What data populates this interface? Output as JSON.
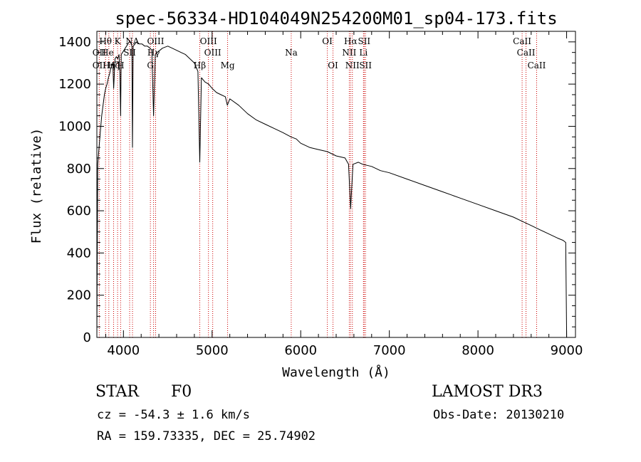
{
  "chart_data": {
    "type": "line",
    "title": "spec-56334-HD104049N254200M01_sp04-173.fits",
    "xlabel": "Wavelength (Å)",
    "ylabel": "Flux (relative)",
    "xlim": [
      3700,
      9100
    ],
    "ylim": [
      0,
      1450
    ],
    "xticks": [
      4000,
      5000,
      6000,
      7000,
      8000,
      9000
    ],
    "yticks": [
      0,
      200,
      400,
      600,
      800,
      1000,
      1200,
      1400
    ],
    "x_tick_labels": [
      "4000",
      "5000",
      "6000",
      "7000",
      "8000",
      "9000"
    ],
    "y_tick_labels": [
      "0",
      "200",
      "400",
      "600",
      "800",
      "1000",
      "1200",
      "1400"
    ],
    "series": [
      {
        "name": "spectrum",
        "color": "#000000",
        "x": [
          3700,
          3710,
          3725,
          3740,
          3755,
          3770,
          3785,
          3800,
          3815,
          3830,
          3845,
          3860,
          3870,
          3880,
          3890,
          3905,
          3920,
          3935,
          3950,
          3960,
          3968,
          3975,
          3990,
          4005,
          4020,
          4035,
          4050,
          4065,
          4080,
          4095,
          4102,
          4110,
          4130,
          4150,
          4180,
          4210,
          4240,
          4270,
          4300,
          4320,
          4340,
          4360,
          4380,
          4410,
          4440,
          4470,
          4500,
          4550,
          4600,
          4650,
          4700,
          4750,
          4800,
          4840,
          4861,
          4880,
          4920,
          4960,
          5000,
          5050,
          5100,
          5150,
          5172,
          5200,
          5300,
          5400,
          5500,
          5600,
          5700,
          5800,
          5890,
          5950,
          6000,
          6100,
          6200,
          6300,
          6400,
          6500,
          6540,
          6563,
          6590,
          6650,
          6700,
          6800,
          6900,
          7000,
          7200,
          7400,
          7600,
          7800,
          8000,
          8200,
          8400,
          8500,
          8600,
          8700,
          8800,
          8900,
          8960,
          8990,
          9000
        ],
        "y": [
          0,
          820,
          900,
          980,
          1050,
          1100,
          1150,
          1180,
          1200,
          1230,
          1250,
          1280,
          1290,
          1300,
          1180,
          1320,
          1330,
          1320,
          1340,
          1250,
          1050,
          1340,
          1350,
          1360,
          1370,
          1380,
          1390,
          1400,
          1400,
          1380,
          900,
          1380,
          1390,
          1400,
          1390,
          1390,
          1380,
          1380,
          1370,
          1360,
          1050,
          1340,
          1350,
          1360,
          1370,
          1375,
          1380,
          1370,
          1360,
          1350,
          1340,
          1320,
          1300,
          1260,
          830,
          1230,
          1210,
          1200,
          1180,
          1160,
          1150,
          1140,
          1100,
          1130,
          1100,
          1060,
          1030,
          1010,
          990,
          970,
          950,
          940,
          920,
          900,
          890,
          880,
          860,
          850,
          820,
          610,
          820,
          830,
          820,
          810,
          790,
          780,
          750,
          720,
          690,
          660,
          630,
          600,
          570,
          550,
          530,
          510,
          490,
          470,
          460,
          450,
          0
        ]
      }
    ],
    "line_markers": [
      {
        "label": "Hθ",
        "x": 3798,
        "row": 1
      },
      {
        "label": "OII",
        "x": 3727,
        "row": 2
      },
      {
        "label": "OII",
        "x": 3727,
        "row": 3
      },
      {
        "label": "He",
        "x": 3820,
        "row": 2
      },
      {
        "label": "Hη",
        "x": 3835,
        "row": 3
      },
      {
        "label": "Hζ",
        "x": 3889,
        "row": 3
      },
      {
        "label": "K",
        "x": 3934,
        "row": 1
      },
      {
        "label": "H",
        "x": 3968,
        "row": 3
      },
      {
        "label": "SII",
        "x": 4070,
        "row": 2
      },
      {
        "label": "NA",
        "x": 4100,
        "row": 1
      },
      {
        "label": "OIII",
        "x": 4363,
        "row": 1
      },
      {
        "label": "Hγ",
        "x": 4340,
        "row": 2
      },
      {
        "label": "G",
        "x": 4304,
        "row": 3
      },
      {
        "label": "OIII",
        "x": 4959,
        "row": 1
      },
      {
        "label": "OIII",
        "x": 5007,
        "row": 2
      },
      {
        "label": "Hβ",
        "x": 4861,
        "row": 3
      },
      {
        "label": "Mg",
        "x": 5175,
        "row": 3
      },
      {
        "label": "Na",
        "x": 5893,
        "row": 2
      },
      {
        "label": "OI",
        "x": 6300,
        "row": 1
      },
      {
        "label": "OI",
        "x": 6364,
        "row": 3
      },
      {
        "label": "Hα",
        "x": 6563,
        "row": 1
      },
      {
        "label": "SII",
        "x": 6716,
        "row": 1
      },
      {
        "label": "NII",
        "x": 6548,
        "row": 2
      },
      {
        "label": "Li",
        "x": 6708,
        "row": 2
      },
      {
        "label": "NII",
        "x": 6583,
        "row": 3
      },
      {
        "label": "SII",
        "x": 6731,
        "row": 3
      },
      {
        "label": "CaII",
        "x": 8498,
        "row": 1
      },
      {
        "label": "CaII",
        "x": 8542,
        "row": 2
      },
      {
        "label": "CaII",
        "x": 8662,
        "row": 3
      }
    ],
    "marker_lines_x": [
      3727,
      3798,
      3835,
      3889,
      3934,
      3968,
      4070,
      4102,
      4304,
      4340,
      4363,
      4861,
      4959,
      5007,
      5175,
      5893,
      6300,
      6364,
      6548,
      6563,
      6583,
      6708,
      6716,
      6731,
      8498,
      8542,
      8662
    ],
    "grid": false,
    "legend": "none"
  },
  "info": {
    "object_class": "STAR",
    "subclass": "F0",
    "redshift": "cz = -54.3 ± 1.6 km/s",
    "coords": "RA = 159.73335, DEC =  25.74902",
    "survey": "LAMOST DR3",
    "obs_date": "Obs-Date: 20130210"
  },
  "colors": {
    "spectrum": "#000000",
    "marker_line": "#cc0000",
    "axes": "#000000"
  }
}
